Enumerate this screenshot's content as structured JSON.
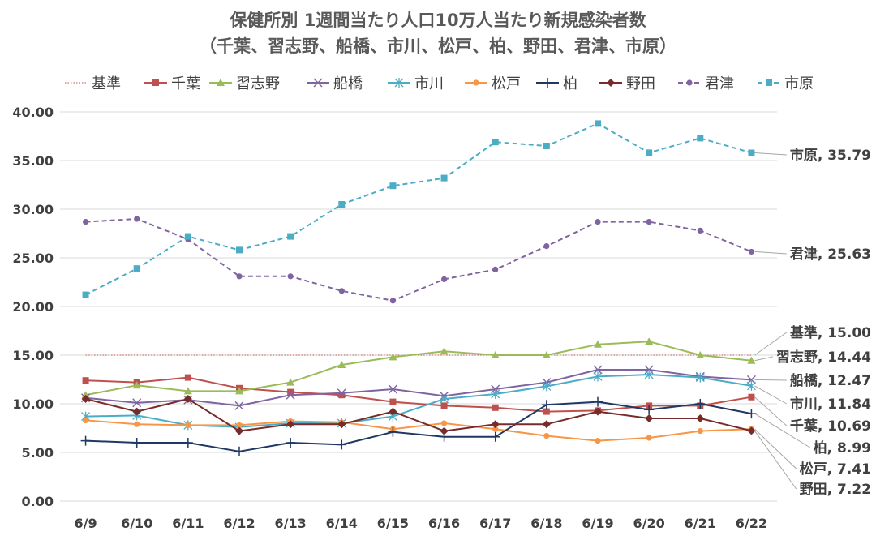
{
  "chart_data": {
    "type": "line",
    "title": "保健所別 1週間当たり人口10万人当たり新規感染者数",
    "subtitle": "（千葉、習志野、船橋、市川、松戸、柏、野田、君津、市原）",
    "xlabel": "",
    "ylabel": "",
    "ylim": [
      0,
      40
    ],
    "y_tick_labels": [
      "0.00",
      "5.00",
      "10.00",
      "15.00",
      "20.00",
      "25.00",
      "30.00",
      "35.00",
      "40.00"
    ],
    "grid": true,
    "legend_position": "top",
    "categories": [
      "6/9",
      "6/10",
      "6/11",
      "6/12",
      "6/13",
      "6/14",
      "6/15",
      "6/16",
      "6/17",
      "6/18",
      "6/19",
      "6/20",
      "6/21",
      "6/22"
    ],
    "series": [
      {
        "name": "基準",
        "color": "#c0504d",
        "marker": "none",
        "dash": "dot",
        "values": [
          15,
          15,
          15,
          15,
          15,
          15,
          15,
          15,
          15,
          15,
          15,
          15,
          15,
          15
        ],
        "end_label": "基準, 15.00"
      },
      {
        "name": "千葉",
        "color": "#c0504d",
        "marker": "square",
        "dash": "solid",
        "values": [
          12.4,
          12.2,
          12.7,
          11.6,
          11.2,
          10.9,
          10.2,
          9.8,
          9.6,
          9.2,
          9.3,
          9.8,
          9.8,
          10.69
        ],
        "end_label": "千葉, 10.69"
      },
      {
        "name": "習志野",
        "color": "#9bbb59",
        "marker": "triangle",
        "dash": "solid",
        "values": [
          10.9,
          11.9,
          11.3,
          11.3,
          12.2,
          14.0,
          14.8,
          15.4,
          15.0,
          15.0,
          16.1,
          16.4,
          15.0,
          14.44
        ],
        "end_label": "習志野, 14.44"
      },
      {
        "name": "船橋",
        "color": "#8064a2",
        "marker": "x",
        "dash": "solid",
        "values": [
          10.6,
          10.1,
          10.4,
          9.8,
          10.9,
          11.1,
          11.5,
          10.8,
          11.5,
          12.2,
          13.5,
          13.5,
          12.8,
          12.47
        ],
        "end_label": "船橋, 12.47"
      },
      {
        "name": "市川",
        "color": "#4bacc6",
        "marker": "star",
        "dash": "solid",
        "values": [
          8.7,
          8.8,
          7.8,
          7.6,
          8.0,
          8.0,
          8.7,
          10.5,
          11.0,
          11.8,
          12.8,
          13.0,
          12.7,
          11.84
        ],
        "end_label": "市川, 11.84"
      },
      {
        "name": "松戸",
        "color": "#f79646",
        "marker": "circle",
        "dash": "solid",
        "values": [
          8.3,
          7.9,
          7.8,
          7.8,
          8.2,
          8.1,
          7.4,
          8.0,
          7.4,
          6.7,
          6.2,
          6.5,
          7.2,
          7.41
        ],
        "end_label": "松戸, 7.41"
      },
      {
        "name": "柏",
        "color": "#1f3864",
        "marker": "plus",
        "dash": "solid",
        "values": [
          6.2,
          6.0,
          6.0,
          5.1,
          6.0,
          5.8,
          7.1,
          6.6,
          6.6,
          9.9,
          10.2,
          9.4,
          10.0,
          8.99
        ],
        "end_label": "柏, 8.99"
      },
      {
        "name": "野田",
        "color": "#772c2a",
        "marker": "diamond",
        "dash": "solid",
        "values": [
          10.5,
          9.2,
          10.5,
          7.2,
          7.9,
          7.9,
          9.2,
          7.2,
          7.9,
          7.9,
          9.2,
          8.5,
          8.5,
          7.22
        ],
        "end_label": "野田, 7.22"
      },
      {
        "name": "君津",
        "color": "#8064a2",
        "marker": "circle",
        "dash": "dash",
        "values": [
          28.7,
          29.0,
          26.9,
          23.1,
          23.1,
          21.6,
          20.6,
          22.8,
          23.8,
          26.2,
          28.7,
          28.7,
          27.8,
          25.63
        ],
        "end_label": "君津, 25.63"
      },
      {
        "name": "市原",
        "color": "#4bacc6",
        "marker": "square",
        "dash": "dash",
        "values": [
          21.2,
          23.9,
          27.2,
          25.8,
          27.2,
          30.5,
          32.4,
          33.2,
          36.9,
          36.5,
          38.8,
          35.8,
          37.3,
          35.79
        ],
        "end_label": "市原, 35.79"
      }
    ]
  }
}
